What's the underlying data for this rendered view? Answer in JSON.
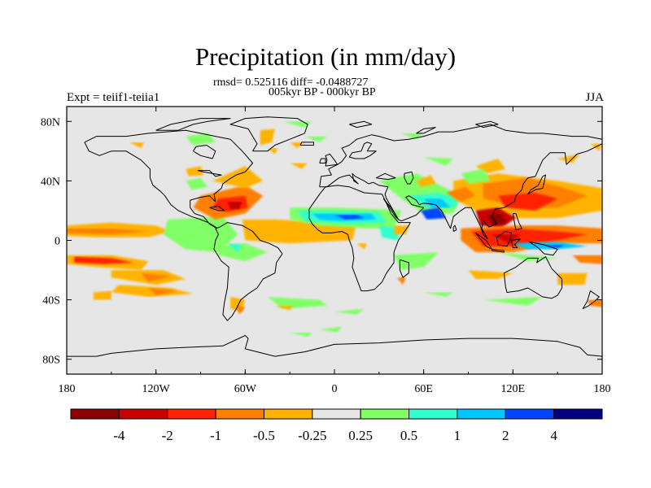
{
  "title": "Precipitation (in mm/day)",
  "subtitle_line1": "rmsd= 0.525116 diff= -0.0488727",
  "subtitle_line2": "005kyr BP - 000kyr BP",
  "left_header": "Expt = teiif1-teiia1",
  "right_header": "JJA",
  "map": {
    "projection": "cylindrical-equidistant",
    "lon_range": [
      -180,
      180
    ],
    "lat_range": [
      -90,
      90
    ],
    "land_fill": "#e6e6e6",
    "coastline_color": "#000000",
    "lon_ticks": [
      {
        "value": -180,
        "label": "180"
      },
      {
        "value": -120,
        "label": "120W"
      },
      {
        "value": -60,
        "label": "60W"
      },
      {
        "value": 0,
        "label": "0"
      },
      {
        "value": 60,
        "label": "60E"
      },
      {
        "value": 120,
        "label": "120E"
      },
      {
        "value": 180,
        "label": "180"
      }
    ],
    "lat_ticks": [
      {
        "value": 80,
        "label": "80N"
      },
      {
        "value": 40,
        "label": "40N"
      },
      {
        "value": 0,
        "label": "0"
      },
      {
        "value": -40,
        "label": "40S"
      },
      {
        "value": -80,
        "label": "80S"
      }
    ]
  },
  "colorbar": {
    "colors": [
      "#8b0000",
      "#c80000",
      "#ff2200",
      "#ff7f00",
      "#ffb300",
      "#e6e6e6",
      "#80ff66",
      "#33ffcc",
      "#00c8ff",
      "#0044ff",
      "#000080"
    ],
    "labels": [
      "-4",
      "-2",
      "-1",
      "-0.5",
      "-0.25",
      "0.25",
      "0.5",
      "1",
      "2",
      "4"
    ]
  },
  "chart_data": {
    "type": "heatmap",
    "title": "Precipitation (in mm/day)",
    "variable": "precipitation difference",
    "units": "mm/day",
    "season": "JJA",
    "experiment": "teiif1-teiia1",
    "comparison": "005kyr BP - 000kyr BP",
    "rmsd": 0.525116,
    "diff": -0.0488727,
    "xlim": [
      -180,
      180
    ],
    "ylim": [
      -90,
      90
    ],
    "contour_levels": [
      -4,
      -2,
      -1,
      -0.5,
      -0.25,
      0.25,
      0.5,
      1,
      2,
      4
    ],
    "anomaly_regions": [
      {
        "lon": [
          -180,
          -115
        ],
        "lat": [
          2,
          10
        ],
        "value": -0.5
      },
      {
        "lon": [
          -180,
          -125
        ],
        "lat": [
          -12,
          -18
        ],
        "value": -1
      },
      {
        "lon": [
          -140,
          -95
        ],
        "lat": [
          -28,
          -35
        ],
        "value": -0.5
      },
      {
        "lon": [
          -150,
          -100
        ],
        "lat": [
          -12,
          -20
        ],
        "value": -0.5
      },
      {
        "lon": [
          -90,
          -72
        ],
        "lat": [
          -3,
          8
        ],
        "value": 1
      },
      {
        "lon": [
          -55,
          10
        ],
        "lat": [
          2,
          10
        ],
        "value": -1
      },
      {
        "lon": [
          -40,
          -10
        ],
        "lat": [
          3,
          7
        ],
        "value": -2
      },
      {
        "lon": [
          -75,
          -60
        ],
        "lat": [
          18,
          28
        ],
        "value": -1
      },
      {
        "lon": [
          -85,
          -70
        ],
        "lat": [
          23,
          32
        ],
        "value": -0.5
      },
      {
        "lon": [
          -30,
          40
        ],
        "lat": [
          12,
          20
        ],
        "value": 1
      },
      {
        "lon": [
          0,
          30
        ],
        "lat": [
          14,
          18
        ],
        "value": 2
      },
      {
        "lon": [
          70,
          150
        ],
        "lat": [
          15,
          35
        ],
        "value": -2
      },
      {
        "lon": [
          100,
          125
        ],
        "lat": [
          10,
          22
        ],
        "value": -4
      },
      {
        "lon": [
          90,
          180
        ],
        "lat": [
          -5,
          5
        ],
        "value": -1
      },
      {
        "lon": [
          115,
          160
        ],
        "lat": [
          -5,
          0
        ],
        "value": 1
      },
      {
        "lon": [
          60,
          95
        ],
        "lat": [
          12,
          30
        ],
        "value": 1
      },
      {
        "lon": [
          -60,
          -30
        ],
        "lat": [
          -40,
          -50
        ],
        "value": 0.5
      }
    ]
  }
}
